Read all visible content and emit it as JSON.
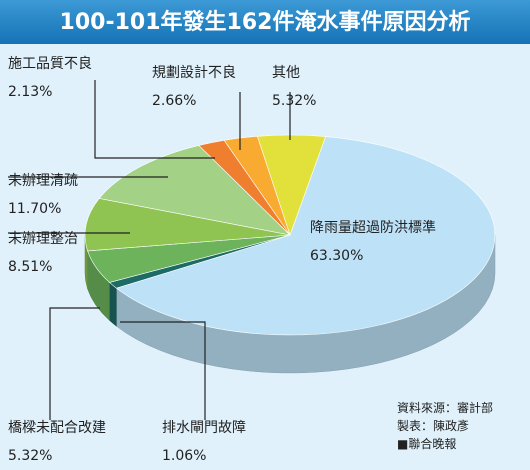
{
  "chart_data": {
    "type": "pie3d",
    "title": "100-101年發生162件淹水事件原因分析",
    "categories": [
      "降雨量超過防洪標準",
      "排水閘門故障",
      "橋樑未配合改建",
      "未辦理整治",
      "未辦理清疏",
      "施工品質不良",
      "規劃設計不良",
      "其他"
    ],
    "values": [
      63.3,
      1.06,
      5.32,
      8.51,
      11.7,
      2.13,
      2.66,
      5.32
    ],
    "value_labels": [
      "63.30%",
      "1.06%",
      "5.32%",
      "8.51%",
      "11.70%",
      "2.13%",
      "2.66%",
      "5.32%"
    ],
    "colors": [
      "#bde2f7",
      "#1d6b66",
      "#6cb35c",
      "#8fc352",
      "#a3d185",
      "#ef7f2e",
      "#f8ab30",
      "#e2e13c"
    ],
    "annotations": [
      "資料來源：審計部",
      "製表：陳政彥",
      "■聯合晚報"
    ]
  }
}
